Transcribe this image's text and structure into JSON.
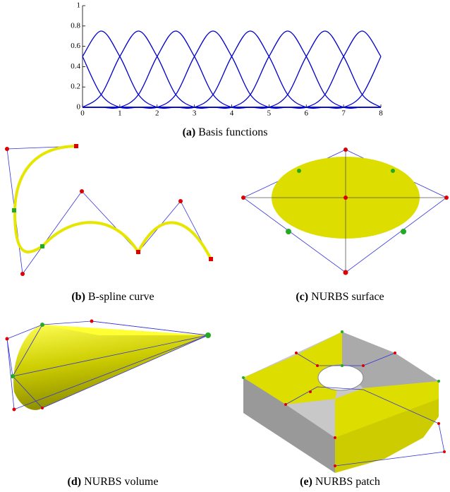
{
  "chart_data": {
    "type": "line",
    "x": [
      0,
      0.5,
      1,
      1.5,
      2,
      2.5,
      3,
      3.5,
      4,
      4.5,
      5,
      5.5,
      6,
      6.5,
      7,
      7.5,
      8
    ],
    "series": [
      {
        "color": "#0000cc",
        "values": [
          0.5,
          0.125,
          0,
          0,
          0,
          0,
          0,
          0,
          0,
          0,
          0,
          0,
          0,
          0,
          0,
          0,
          0
        ]
      },
      {
        "color": "#0000cc",
        "values": [
          0.5,
          0.75,
          0.5,
          0.125,
          0,
          0,
          0,
          0,
          0,
          0,
          0,
          0,
          0,
          0,
          0,
          0,
          0
        ]
      },
      {
        "color": "#0000cc",
        "values": [
          0,
          0.125,
          0.5,
          0.75,
          0.5,
          0.125,
          0,
          0,
          0,
          0,
          0,
          0,
          0,
          0,
          0,
          0,
          0
        ]
      },
      {
        "color": "#0000cc",
        "values": [
          0,
          0,
          0,
          0.125,
          0.5,
          0.75,
          0.5,
          0.125,
          0,
          0,
          0,
          0,
          0,
          0,
          0,
          0,
          0
        ]
      },
      {
        "color": "#0000cc",
        "values": [
          0,
          0,
          0,
          0,
          0,
          0.125,
          0.5,
          0.75,
          0.5,
          0.125,
          0,
          0,
          0,
          0,
          0,
          0,
          0
        ]
      },
      {
        "color": "#0000cc",
        "values": [
          0,
          0,
          0,
          0,
          0,
          0,
          0,
          0.125,
          0.5,
          0.75,
          0.5,
          0.125,
          0,
          0,
          0,
          0,
          0
        ]
      },
      {
        "color": "#0000cc",
        "values": [
          0,
          0,
          0,
          0,
          0,
          0,
          0,
          0,
          0,
          0.125,
          0.5,
          0.75,
          0.5,
          0.125,
          0,
          0,
          0
        ]
      },
      {
        "color": "#0000cc",
        "values": [
          0,
          0,
          0,
          0,
          0,
          0,
          0,
          0,
          0,
          0,
          0,
          0.125,
          0.5,
          0.75,
          0.5,
          0.125,
          0
        ]
      },
      {
        "color": "#0000cc",
        "values": [
          0,
          0,
          0,
          0,
          0,
          0,
          0,
          0,
          0,
          0,
          0,
          0,
          0,
          0.125,
          0.5,
          0.75,
          0.5
        ]
      },
      {
        "color": "#0000cc",
        "values": [
          0,
          0,
          0,
          0,
          0,
          0,
          0,
          0,
          0,
          0,
          0,
          0,
          0,
          0,
          0,
          0.125,
          0.5
        ]
      }
    ],
    "xlim": [
      0,
      8
    ],
    "xticks": [
      0,
      1,
      2,
      3,
      4,
      5,
      6,
      7,
      8
    ],
    "ylim": [
      0,
      1
    ],
    "yticks": [
      0,
      0.2,
      0.4,
      0.6,
      0.8,
      1
    ],
    "grid": false
  },
  "captions": [
    {
      "label": "(a)",
      "text": "Basis functions"
    },
    {
      "label": "(b)",
      "text": "B-spline curve"
    },
    {
      "label": "(c)",
      "text": "NURBS surface"
    },
    {
      "label": "(d)",
      "text": "NURBS volume"
    },
    {
      "label": "(e)",
      "text": "NURBS patch"
    }
  ]
}
